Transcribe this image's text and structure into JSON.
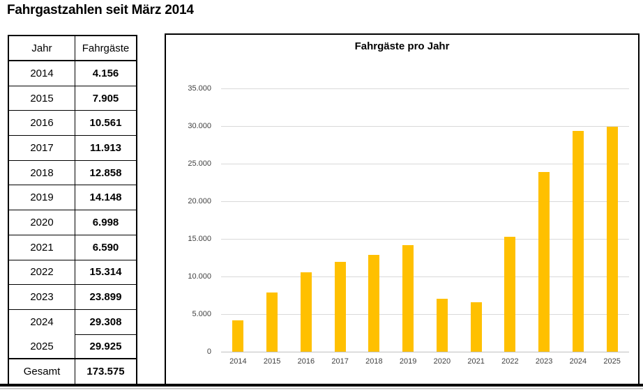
{
  "page": {
    "title": "Fahrgastzahlen seit März 2014"
  },
  "table": {
    "headers": [
      "Jahr",
      "Fahrgäste"
    ],
    "rows": [
      {
        "year": "2014",
        "value": "4.156"
      },
      {
        "year": "2015",
        "value": "7.905"
      },
      {
        "year": "2016",
        "value": "10.561"
      },
      {
        "year": "2017",
        "value": "11.913"
      },
      {
        "year": "2018",
        "value": "12.858"
      },
      {
        "year": "2019",
        "value": "14.148"
      },
      {
        "year": "2020",
        "value": "6.998"
      },
      {
        "year": "2021",
        "value": "6.590"
      },
      {
        "year": "2022",
        "value": "15.314"
      },
      {
        "year": "2023",
        "value": "23.899"
      },
      {
        "year": "2024",
        "value": "29.308",
        "no_year_divider_below": true
      },
      {
        "year": "2025",
        "value": "29.925"
      }
    ],
    "total": {
      "label": "Gesamt",
      "value": "173.575"
    }
  },
  "chart_data": {
    "type": "bar",
    "title": "Fahrgäste pro Jahr",
    "categories": [
      "2014",
      "2015",
      "2016",
      "2017",
      "2018",
      "2019",
      "2020",
      "2021",
      "2022",
      "2023",
      "2024",
      "2025"
    ],
    "values": [
      4156,
      7905,
      10561,
      11913,
      12858,
      14148,
      6998,
      6590,
      15314,
      23899,
      29308,
      29925
    ],
    "xlabel": "",
    "ylabel": "",
    "ylim": [
      0,
      35000
    ],
    "y_tick_step": 5000,
    "y_tick_labels": [
      "0",
      "5.000",
      "10.000",
      "15.000",
      "20.000",
      "25.000",
      "30.000",
      "35.000"
    ],
    "grid": true,
    "legend": "none",
    "bar_color": "#FFC000",
    "gridline_color": "#D9D9D9",
    "axis_text_color": "#404040"
  }
}
